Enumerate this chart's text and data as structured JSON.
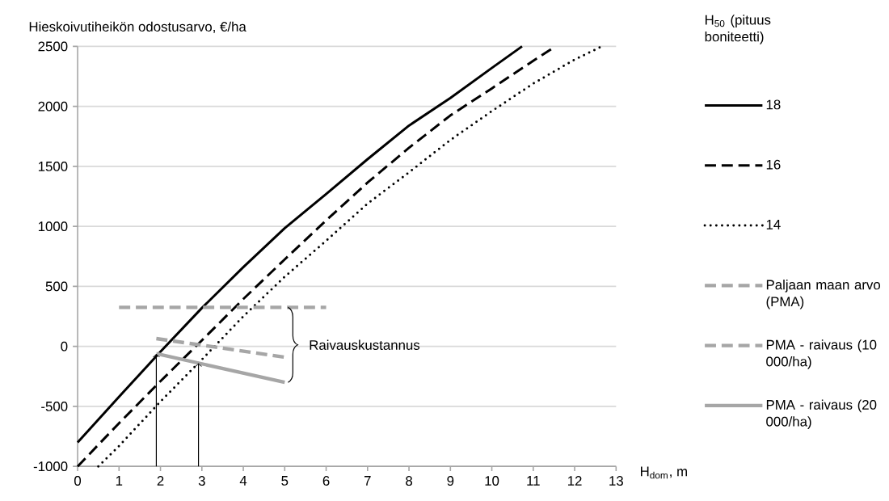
{
  "chart_data": {
    "type": "line",
    "ylabel": "Hieskoivutiheikön odostusarvo,  €/ha",
    "xlabel": "H$_{dom}$, m",
    "legend_title": "H$_{50}$ (pituus boniteetti)",
    "annotations": [
      "Raivauskustannus"
    ],
    "xlim": [
      0,
      13
    ],
    "xticks": [
      0,
      1,
      2,
      3,
      4,
      5,
      6,
      7,
      8,
      9,
      10,
      11,
      12,
      13
    ],
    "ylim": [
      -1000,
      2500
    ],
    "yticks": [
      -1000,
      -500,
      0,
      500,
      1000,
      1500,
      2000,
      2500
    ],
    "grid": "y",
    "legend": "right",
    "series": [
      {
        "name": "18",
        "color": "#000000",
        "line_style": "solid",
        "x": [
          0,
          1,
          2,
          3,
          4,
          5,
          6,
          7,
          8,
          9,
          10,
          10.73
        ],
        "values": [
          -800,
          -420,
          -45,
          320,
          660,
          985,
          1270,
          1560,
          1840,
          2070,
          2320,
          2500
        ]
      },
      {
        "name": "16",
        "color": "#000000",
        "line_style": "dashed",
        "x": [
          0,
          1,
          2,
          3,
          4,
          5,
          6,
          7,
          8,
          9,
          10,
          11,
          11.54
        ],
        "values": [
          -1000,
          -640,
          -290,
          50,
          395,
          725,
          1050,
          1365,
          1655,
          1925,
          2150,
          2380,
          2500
        ]
      },
      {
        "name": "14",
        "color": "#000000",
        "line_style": "dotted",
        "x": [
          0.5,
          1,
          2,
          3,
          4,
          5,
          6,
          7,
          8,
          9,
          10,
          11,
          12,
          12.66
        ],
        "values": [
          -1000,
          -830,
          -460,
          -110,
          250,
          580,
          880,
          1190,
          1450,
          1720,
          1960,
          2190,
          2390,
          2500
        ]
      },
      {
        "name": "Paljaan maan arvo (PMA)",
        "color": "#a6a6a6",
        "line_style": "dashed",
        "x": [
          1,
          6
        ],
        "values": [
          325,
          325
        ]
      },
      {
        "name": "PMA - raivaus (10 000/ha)",
        "color": "#a6a6a6",
        "line_style": "dashed",
        "x": [
          1.9,
          5
        ],
        "values": [
          65,
          -90
        ]
      },
      {
        "name": "PMA - raivaus (20 000/ha)",
        "color": "#a6a6a6",
        "line_style": "solid",
        "x": [
          1.9,
          5
        ],
        "values": [
          -60,
          -300
        ]
      }
    ]
  }
}
